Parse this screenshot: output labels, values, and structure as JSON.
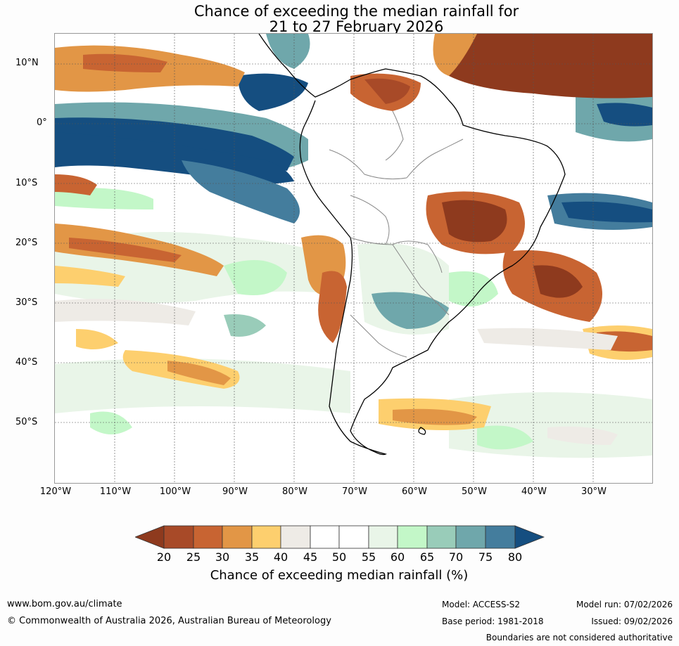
{
  "title": {
    "line1": "Chance of exceeding the median rainfall for",
    "line2": "21 to 27 February 2026"
  },
  "map": {
    "lat_labels": [
      "10°N",
      "0°",
      "10°S",
      "20°S",
      "30°S",
      "40°S",
      "50°S"
    ],
    "lon_labels": [
      "120°W",
      "110°W",
      "100°W",
      "90°W",
      "80°W",
      "70°W",
      "60°W",
      "50°W",
      "40°W",
      "30°W"
    ],
    "lon_range": [
      -120,
      -20
    ],
    "lat_range": [
      -60,
      15
    ],
    "gridlines": true
  },
  "legend": {
    "title": "Chance of exceeding median rainfall (%)",
    "tick_labels": [
      "20",
      "25",
      "30",
      "35",
      "40",
      "45",
      "50",
      "55",
      "60",
      "65",
      "70",
      "75",
      "80"
    ],
    "colors": [
      "#8e3a1e",
      "#a84a28",
      "#c86432",
      "#e29646",
      "#fdcf6e",
      "#eeebe6",
      "#ffffff",
      "#ffffff",
      "#e9f5e8",
      "#c3f7c8",
      "#99ccb9",
      "#6fa7ab",
      "#447d9d",
      "#154e80"
    ]
  },
  "footer": {
    "website": "www.bom.gov.au/climate",
    "copyright": "© Commonwealth of Australia 2026, Australian Bureau of Meteorology",
    "model": "Model: ACCESS-S2",
    "base_period": "Base period: 1981-2018",
    "model_run": "Model run: 07/02/2026",
    "issued": "Issued: 09/02/2026",
    "disclaimer": "Boundaries are not considered authoritative"
  }
}
